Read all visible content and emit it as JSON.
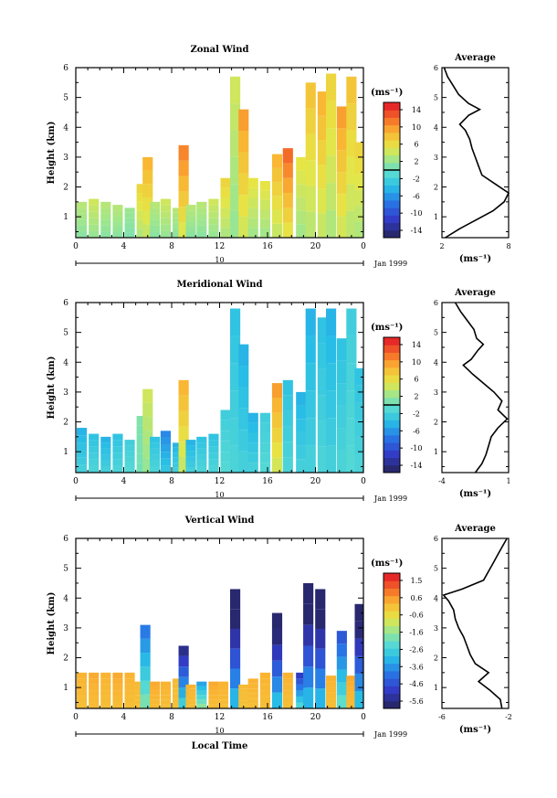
{
  "chart_data": [
    {
      "type": "heatmap",
      "title": "Zonal Wind",
      "ylabel": "Height (km)",
      "xlabel": "",
      "xlim": [
        0,
        24
      ],
      "ylim": [
        0.3,
        6
      ],
      "x_ticks": [
        "0",
        "4",
        "8",
        "12",
        "16",
        "20",
        "0"
      ],
      "y_ticks": [
        "1",
        "2",
        "3",
        "4",
        "5",
        "6"
      ],
      "date_marker": "10",
      "date_label": "Jan 1999",
      "colorbar": {
        "unit": "(ms⁻¹)",
        "ticks": [
          "14",
          "10",
          "6",
          "2",
          "-2",
          "-6",
          "-10",
          "-14"
        ],
        "range": [
          -16,
          16
        ],
        "zero_line": true
      },
      "columns": [
        {
          "x": 0.5,
          "top": 1.5,
          "v": 3
        },
        {
          "x": 1.5,
          "top": 1.6,
          "v": 4
        },
        {
          "x": 2.5,
          "top": 1.5,
          "v": 3
        },
        {
          "x": 3.5,
          "top": 1.4,
          "v": 3
        },
        {
          "x": 4.5,
          "top": 1.3,
          "v": 2
        },
        {
          "x": 5.5,
          "top": 2.1,
          "v": 6
        },
        {
          "x": 6.0,
          "top": 3.0,
          "v": 8
        },
        {
          "x": 6.6,
          "top": 1.5,
          "v": 3
        },
        {
          "x": 7.5,
          "top": 1.6,
          "v": 4
        },
        {
          "x": 8.5,
          "top": 1.3,
          "v": 3
        },
        {
          "x": 9.0,
          "top": 3.4,
          "v": 10
        },
        {
          "x": 9.6,
          "top": 1.4,
          "v": 3
        },
        {
          "x": 10.5,
          "top": 1.5,
          "v": 3
        },
        {
          "x": 11.5,
          "top": 1.6,
          "v": 4
        },
        {
          "x": 12.5,
          "top": 2.3,
          "v": 6
        },
        {
          "x": 13.3,
          "top": 5.7,
          "v": 4
        },
        {
          "x": 14.0,
          "top": 4.6,
          "v": 9
        },
        {
          "x": 14.8,
          "top": 2.3,
          "v": 5
        },
        {
          "x": 15.8,
          "top": 2.2,
          "v": 5
        },
        {
          "x": 16.8,
          "top": 3.1,
          "v": 8
        },
        {
          "x": 17.7,
          "top": 3.3,
          "v": 11
        },
        {
          "x": 18.8,
          "top": 3.0,
          "v": 5
        },
        {
          "x": 19.6,
          "top": 5.5,
          "v": 7
        },
        {
          "x": 20.6,
          "top": 5.2,
          "v": 8
        },
        {
          "x": 21.3,
          "top": 5.8,
          "v": 6
        },
        {
          "x": 22.2,
          "top": 4.7,
          "v": 9
        },
        {
          "x": 23.0,
          "top": 5.7,
          "v": 7
        },
        {
          "x": 23.7,
          "top": 3.5,
          "v": 6
        }
      ],
      "average_profile": {
        "title": "Average",
        "xlabel": "(ms⁻¹)",
        "x_ticks": [
          "2",
          "8"
        ],
        "xlim": [
          2,
          8
        ],
        "heights": [
          0.3,
          0.6,
          0.9,
          1.2,
          1.5,
          1.8,
          2.1,
          2.4,
          2.7,
          3.0,
          3.3,
          3.6,
          3.9,
          4.1,
          4.4,
          4.6,
          4.8,
          5.1,
          5.4,
          5.7,
          6.0
        ],
        "values": [
          2.3,
          3.6,
          5.1,
          6.6,
          7.6,
          8.1,
          6.8,
          5.6,
          5.3,
          5.0,
          4.7,
          4.5,
          4.1,
          3.6,
          4.4,
          5.4,
          4.4,
          3.5,
          3.0,
          2.5,
          2.2
        ]
      }
    },
    {
      "type": "heatmap",
      "title": "Meridional Wind",
      "ylabel": "Height (km)",
      "xlabel": "",
      "xlim": [
        0,
        24
      ],
      "ylim": [
        0.3,
        6
      ],
      "x_ticks": [
        "0",
        "4",
        "8",
        "12",
        "16",
        "20",
        "0"
      ],
      "y_ticks": [
        "1",
        "2",
        "3",
        "4",
        "5",
        "6"
      ],
      "date_marker": "10",
      "date_label": "Jan 1999",
      "colorbar": {
        "unit": "(ms⁻¹)",
        "ticks": [
          "14",
          "10",
          "6",
          "2",
          "-2",
          "-6",
          "-10",
          "-14"
        ],
        "range": [
          -16,
          16
        ],
        "zero_line": true
      },
      "columns": [
        {
          "x": 0.5,
          "top": 1.8,
          "v": -4
        },
        {
          "x": 1.5,
          "top": 1.6,
          "v": -3
        },
        {
          "x": 2.5,
          "top": 1.5,
          "v": -4
        },
        {
          "x": 3.5,
          "top": 1.6,
          "v": -3
        },
        {
          "x": 4.5,
          "top": 1.4,
          "v": -2
        },
        {
          "x": 5.5,
          "top": 2.2,
          "v": 1
        },
        {
          "x": 6.0,
          "top": 3.1,
          "v": 4
        },
        {
          "x": 6.6,
          "top": 1.5,
          "v": -3
        },
        {
          "x": 7.5,
          "top": 1.7,
          "v": -6
        },
        {
          "x": 8.5,
          "top": 1.3,
          "v": -4
        },
        {
          "x": 9.0,
          "top": 3.4,
          "v": 8
        },
        {
          "x": 9.6,
          "top": 1.4,
          "v": -4
        },
        {
          "x": 10.5,
          "top": 1.5,
          "v": -3
        },
        {
          "x": 11.5,
          "top": 1.6,
          "v": -3
        },
        {
          "x": 12.5,
          "top": 2.4,
          "v": -2
        },
        {
          "x": 13.3,
          "top": 5.8,
          "v": -3
        },
        {
          "x": 14.0,
          "top": 4.6,
          "v": -4
        },
        {
          "x": 14.8,
          "top": 2.3,
          "v": -4
        },
        {
          "x": 15.8,
          "top": 2.3,
          "v": -2
        },
        {
          "x": 16.8,
          "top": 3.3,
          "v": 9
        },
        {
          "x": 17.7,
          "top": 3.4,
          "v": -3
        },
        {
          "x": 18.8,
          "top": 3.0,
          "v": -4
        },
        {
          "x": 19.6,
          "top": 5.8,
          "v": -4
        },
        {
          "x": 20.6,
          "top": 5.5,
          "v": -3
        },
        {
          "x": 21.3,
          "top": 5.8,
          "v": -4
        },
        {
          "x": 22.2,
          "top": 4.8,
          "v": -3
        },
        {
          "x": 23.0,
          "top": 5.8,
          "v": -2
        },
        {
          "x": 23.7,
          "top": 3.8,
          "v": -3
        }
      ],
      "average_profile": {
        "title": "Average",
        "xlabel": "(ms⁻¹)",
        "x_ticks": [
          "-4",
          "1"
        ],
        "xlim": [
          -4,
          1
        ],
        "heights": [
          0.3,
          0.6,
          0.9,
          1.2,
          1.5,
          1.8,
          2.1,
          2.4,
          2.7,
          3.0,
          3.3,
          3.6,
          3.9,
          4.1,
          4.4,
          4.6,
          4.8,
          5.1,
          5.4,
          5.7,
          6.0
        ],
        "values": [
          -1.5,
          -1.0,
          -0.7,
          -0.5,
          -0.3,
          0.2,
          0.9,
          0.2,
          0.5,
          -0.1,
          -0.9,
          -1.7,
          -2.4,
          -1.8,
          -1.3,
          -0.9,
          -1.4,
          -1.6,
          -2.1,
          -2.6,
          -3.0
        ]
      }
    },
    {
      "type": "heatmap",
      "title": "Vertical Wind",
      "ylabel": "Height (km)",
      "xlabel": "Local Time",
      "xlim": [
        0,
        24
      ],
      "ylim": [
        0.3,
        6
      ],
      "x_ticks": [
        "0",
        "4",
        "8",
        "12",
        "16",
        "20",
        "0"
      ],
      "y_ticks": [
        "1",
        "2",
        "3",
        "4",
        "5",
        "6"
      ],
      "date_marker": "10",
      "date_label": "Jan 1999",
      "colorbar": {
        "unit": "(ms⁻¹)",
        "ticks": [
          "1.5",
          "0.6",
          "-0.6",
          "-1.6",
          "-2.6",
          "-3.6",
          "-4.6",
          "-5.6"
        ],
        "range": [
          -6.2,
          2.0
        ],
        "zero_line": false
      },
      "columns": [
        {
          "x": 0.5,
          "top": 1.5,
          "v": 0.3
        },
        {
          "x": 1.5,
          "top": 1.5,
          "v": 0.4
        },
        {
          "x": 2.5,
          "top": 1.5,
          "v": 0.3
        },
        {
          "x": 3.5,
          "top": 1.5,
          "v": 0.4
        },
        {
          "x": 4.5,
          "top": 1.5,
          "v": 0.3
        },
        {
          "x": 5.3,
          "top": 1.2,
          "v": 0.2
        },
        {
          "x": 5.8,
          "top": 3.1,
          "v": -3.5
        },
        {
          "x": 6.6,
          "top": 1.2,
          "v": 0.4
        },
        {
          "x": 7.5,
          "top": 1.2,
          "v": 0.3
        },
        {
          "x": 8.5,
          "top": 1.3,
          "v": 0.2
        },
        {
          "x": 9.0,
          "top": 2.4,
          "v": -5.0
        },
        {
          "x": 9.6,
          "top": 1.1,
          "v": 0.3
        },
        {
          "x": 10.5,
          "top": 1.2,
          "v": -3.0
        },
        {
          "x": 11.5,
          "top": 1.2,
          "v": 0.4
        },
        {
          "x": 12.3,
          "top": 1.2,
          "v": 0.3
        },
        {
          "x": 13.3,
          "top": 4.3,
          "v": -6.0
        },
        {
          "x": 14.0,
          "top": 1.1,
          "v": 0.2
        },
        {
          "x": 14.8,
          "top": 1.3,
          "v": 0.3
        },
        {
          "x": 15.8,
          "top": 1.5,
          "v": 0.3
        },
        {
          "x": 16.8,
          "top": 3.5,
          "v": -5.8
        },
        {
          "x": 17.7,
          "top": 1.5,
          "v": 0.3
        },
        {
          "x": 18.8,
          "top": 1.5,
          "v": -4.5
        },
        {
          "x": 19.4,
          "top": 4.5,
          "v": -6.0
        },
        {
          "x": 20.4,
          "top": 4.3,
          "v": -6.0
        },
        {
          "x": 21.3,
          "top": 1.4,
          "v": 0.3
        },
        {
          "x": 22.2,
          "top": 2.9,
          "v": -4.0
        },
        {
          "x": 23.0,
          "top": 1.4,
          "v": 0.4
        },
        {
          "x": 23.7,
          "top": 3.8,
          "v": -5.8
        }
      ],
      "average_profile": {
        "title": "Average",
        "xlabel": "(ms⁻¹)",
        "x_ticks": [
          "-6",
          "-2"
        ],
        "xlim": [
          -6,
          -2
        ],
        "heights": [
          0.3,
          0.6,
          0.9,
          1.2,
          1.5,
          1.8,
          2.1,
          2.4,
          2.7,
          3.0,
          3.3,
          3.6,
          3.9,
          4.1,
          4.3,
          4.6,
          4.9,
          5.2,
          5.5,
          5.8,
          6.0
        ],
        "values": [
          -2.4,
          -2.5,
          -3.1,
          -3.8,
          -3.2,
          -4.0,
          -4.3,
          -4.5,
          -4.7,
          -5.0,
          -5.2,
          -5.3,
          -5.6,
          -5.9,
          -4.8,
          -3.5,
          -3.2,
          -2.9,
          -2.6,
          -2.3,
          -2.1
        ]
      }
    }
  ]
}
